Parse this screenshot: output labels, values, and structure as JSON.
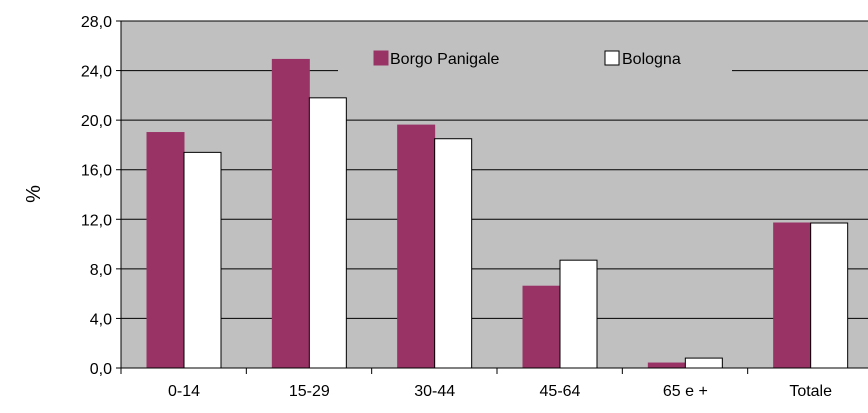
{
  "chart_data": {
    "type": "bar",
    "categories": [
      "0-14",
      "15-29",
      "30-44",
      "45-64",
      "65 e +",
      "Totale"
    ],
    "series": [
      {
        "name": "Borgo Panigale",
        "color": "#993366",
        "values": [
          19.0,
          24.9,
          19.6,
          6.6,
          0.4,
          11.7
        ]
      },
      {
        "name": "Bologna",
        "color": "#ffffff",
        "values": [
          17.4,
          21.8,
          18.5,
          8.7,
          0.8,
          11.7
        ]
      }
    ],
    "ylabel": "%",
    "ylim": [
      0,
      28
    ],
    "yticks": [
      "0,0",
      "4,0",
      "8,0",
      "12,0",
      "16,0",
      "20,0",
      "24,0",
      "28,0"
    ],
    "yticks_values": [
      0,
      4,
      8,
      12,
      16,
      20,
      24,
      28
    ],
    "grid": true,
    "plot_background": "#c0c0c0",
    "legend_position": "top-center"
  }
}
